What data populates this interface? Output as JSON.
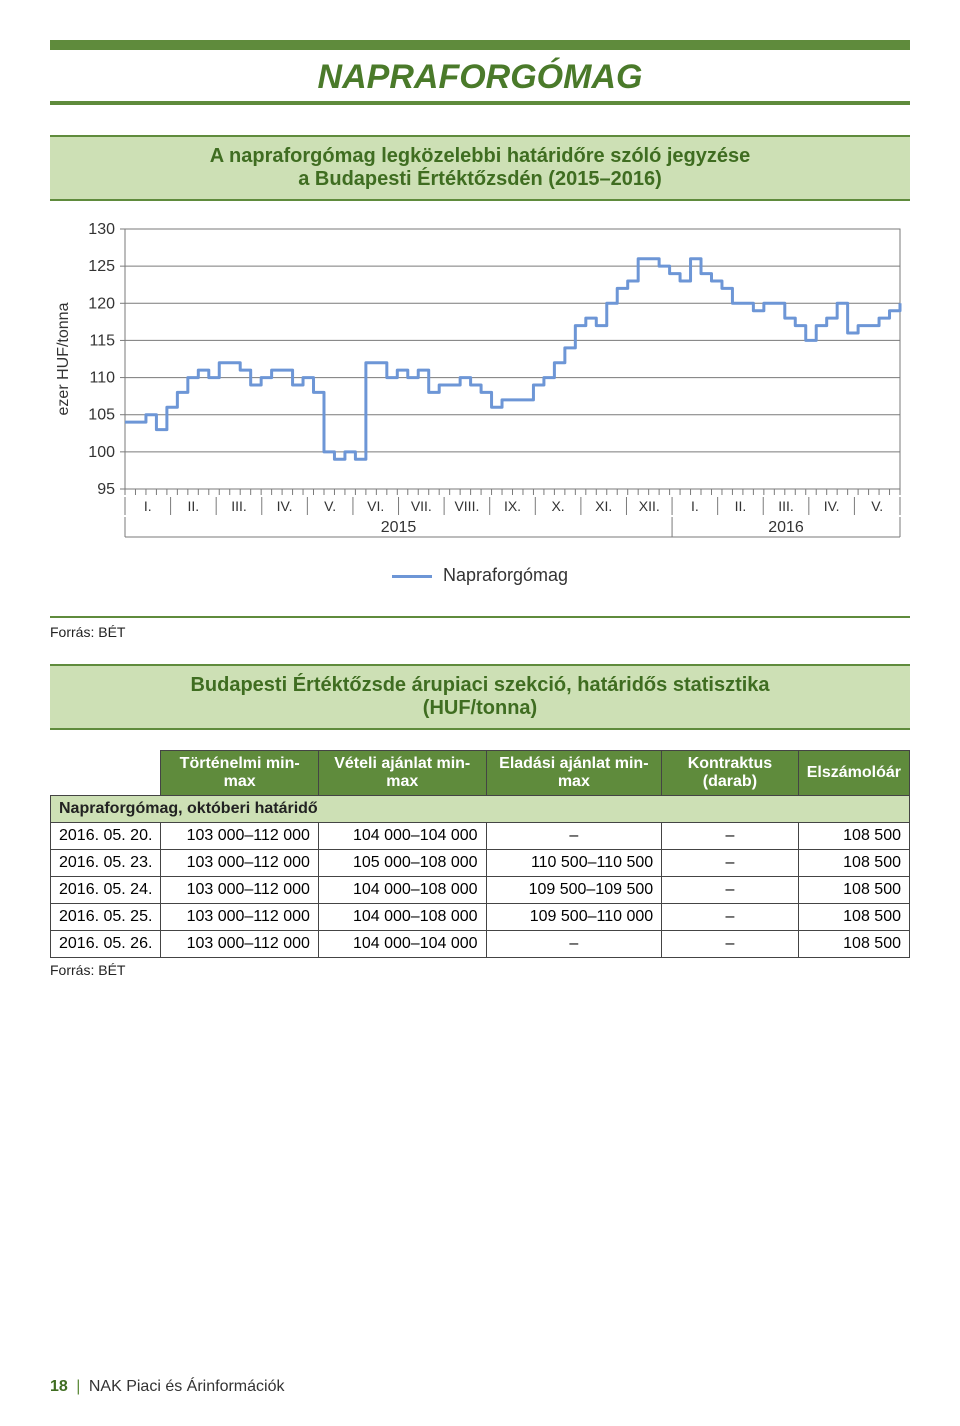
{
  "title": "NAPRAFORGÓMAG",
  "chart_subtitle_line1": "A napraforgómag legközelebbi határidőre szóló jegyzése",
  "chart_subtitle_line2": "a Budapesti Értéktőzsdén (2015–2016)",
  "chart": {
    "type": "line",
    "ylabel": "ezer HUF/tonna",
    "ylim_min": 95,
    "ylim_max": 130,
    "ytick_step": 5,
    "yticks": [
      95,
      100,
      105,
      110,
      115,
      120,
      125,
      130
    ],
    "x_months_2015": [
      "I.",
      "II.",
      "III.",
      "IV.",
      "V.",
      "VI.",
      "VII.",
      "VIII.",
      "IX.",
      "X.",
      "XI.",
      "XII."
    ],
    "x_months_2016": [
      "I.",
      "II.",
      "III.",
      "IV.",
      "V."
    ],
    "year_labels": [
      "2015",
      "2016"
    ],
    "legend_label": "Napraforgómag",
    "line_color": "#6d96d6",
    "grid_color": "#7a7a7a",
    "text_color": "#333333",
    "background_color": "#ffffff",
    "series": [
      104,
      104,
      105,
      103,
      106,
      108,
      110,
      111,
      110,
      112,
      112,
      111,
      109,
      110,
      111,
      111,
      109,
      110,
      108,
      100,
      99,
      100,
      99,
      112,
      112,
      110,
      111,
      110,
      111,
      108,
      109,
      109,
      110,
      109,
      108,
      106,
      107,
      107,
      107,
      109,
      110,
      112,
      114,
      117,
      118,
      117,
      120,
      122,
      123,
      126,
      126,
      125,
      124,
      123,
      126,
      124,
      123,
      122,
      120,
      120,
      119,
      120,
      120,
      118,
      117,
      115,
      117,
      118,
      120,
      116,
      117,
      117,
      118,
      119,
      120
    ]
  },
  "source_label": "Forrás: BÉT",
  "table_title_line1": "Budapesti Értéktőzsde árupiaci szekció, határidős statisztika",
  "table_title_line2": "(HUF/tonna)",
  "table": {
    "headers": [
      "Történelmi min-max",
      "Vételi ajánlat min-max",
      "Eladási ajánlat min-max",
      "Kontraktus (darab)",
      "Elszámolóár"
    ],
    "section_label": "Napraforgómag, októberi határidő",
    "rows": [
      {
        "date": "2016. 05. 20.",
        "hist": "103 000–112 000",
        "buy": "104 000–104 000",
        "sell": "–",
        "contracts": "–",
        "settle": "108 500"
      },
      {
        "date": "2016. 05. 23.",
        "hist": "103 000–112 000",
        "buy": "105 000–108 000",
        "sell": "110 500–110 500",
        "contracts": "–",
        "settle": "108 500"
      },
      {
        "date": "2016. 05. 24.",
        "hist": "103 000–112 000",
        "buy": "104 000–108 000",
        "sell": "109 500–109 500",
        "contracts": "–",
        "settle": "108 500"
      },
      {
        "date": "2016. 05. 25.",
        "hist": "103 000–112 000",
        "buy": "104 000–108 000",
        "sell": "109 500–110 000",
        "contracts": "–",
        "settle": "108 500"
      },
      {
        "date": "2016. 05. 26.",
        "hist": "103 000–112 000",
        "buy": "104 000–104 000",
        "sell": "–",
        "contracts": "–",
        "settle": "108 500"
      }
    ]
  },
  "footer_pagenum": "18",
  "footer_text": "NAK Piaci és Árinformációk"
}
